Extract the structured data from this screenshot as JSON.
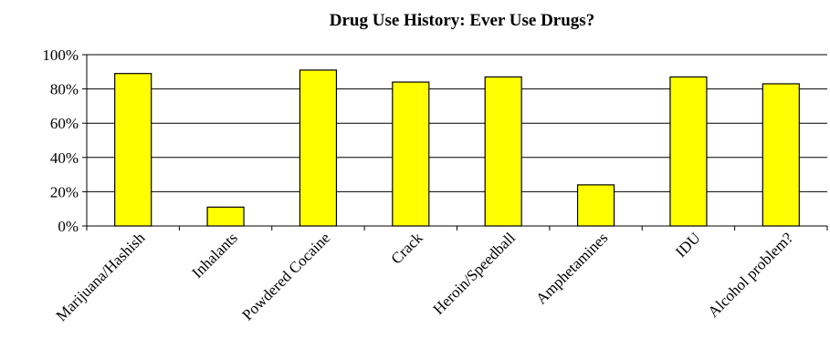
{
  "chart_data": {
    "type": "bar",
    "title": "Drug Use History: Ever Use Drugs?",
    "xlabel": "",
    "ylabel": "",
    "categories": [
      "Marijuana/Hashish",
      "Inhalants",
      "Powdered Cocaine",
      "Crack",
      "Heroin/Speedball",
      "Amphetamines",
      "IDU",
      "Alcohol problem?"
    ],
    "values": [
      89,
      11,
      91,
      84,
      87,
      24,
      87,
      83
    ],
    "value_unit": "%",
    "ylim": [
      0,
      100
    ],
    "yticks": [
      "0%",
      "20%",
      "40%",
      "60%",
      "80%",
      "100%"
    ],
    "grid": true,
    "legend": "none",
    "bar_color": "#ffff00",
    "bar_edge_color": "#000000"
  }
}
